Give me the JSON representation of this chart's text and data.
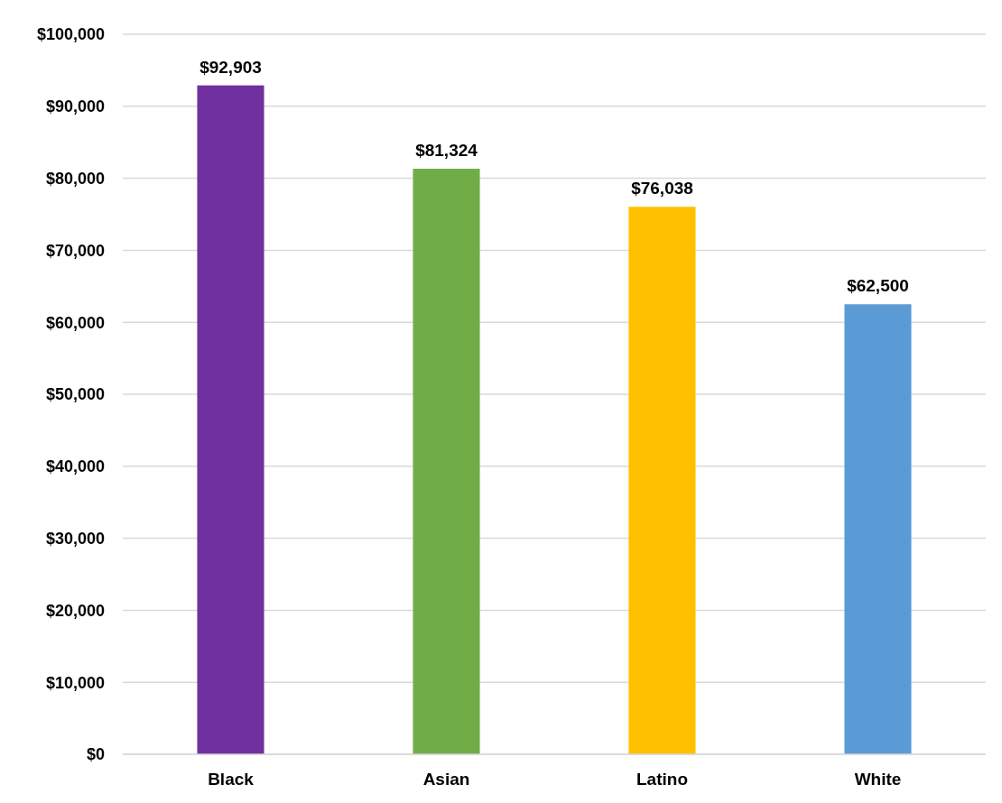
{
  "chart_data": {
    "type": "bar",
    "categories": [
      "Black",
      "Asian",
      "Latino",
      "White"
    ],
    "values": [
      92903,
      81324,
      76038,
      62500
    ],
    "colors": [
      "#7030a0",
      "#70ad47",
      "#ffc000",
      "#5b9bd5"
    ],
    "value_labels": [
      "$92,903",
      "$81,324",
      "$76,038",
      "$62,500"
    ],
    "ylim": [
      0,
      100000
    ],
    "yticks": [
      {
        "value": 0,
        "label": "$0"
      },
      {
        "value": 10000,
        "label": "$10,000"
      },
      {
        "value": 20000,
        "label": "$20,000"
      },
      {
        "value": 30000,
        "label": "$30,000"
      },
      {
        "value": 40000,
        "label": "$40,000"
      },
      {
        "value": 50000,
        "label": "$50,000"
      },
      {
        "value": 60000,
        "label": "$60,000"
      },
      {
        "value": 70000,
        "label": "$70,000"
      },
      {
        "value": 80000,
        "label": "$80,000"
      },
      {
        "value": 90000,
        "label": "$90,000"
      },
      {
        "value": 100000,
        "label": "$100,000"
      }
    ],
    "grid": "y"
  }
}
